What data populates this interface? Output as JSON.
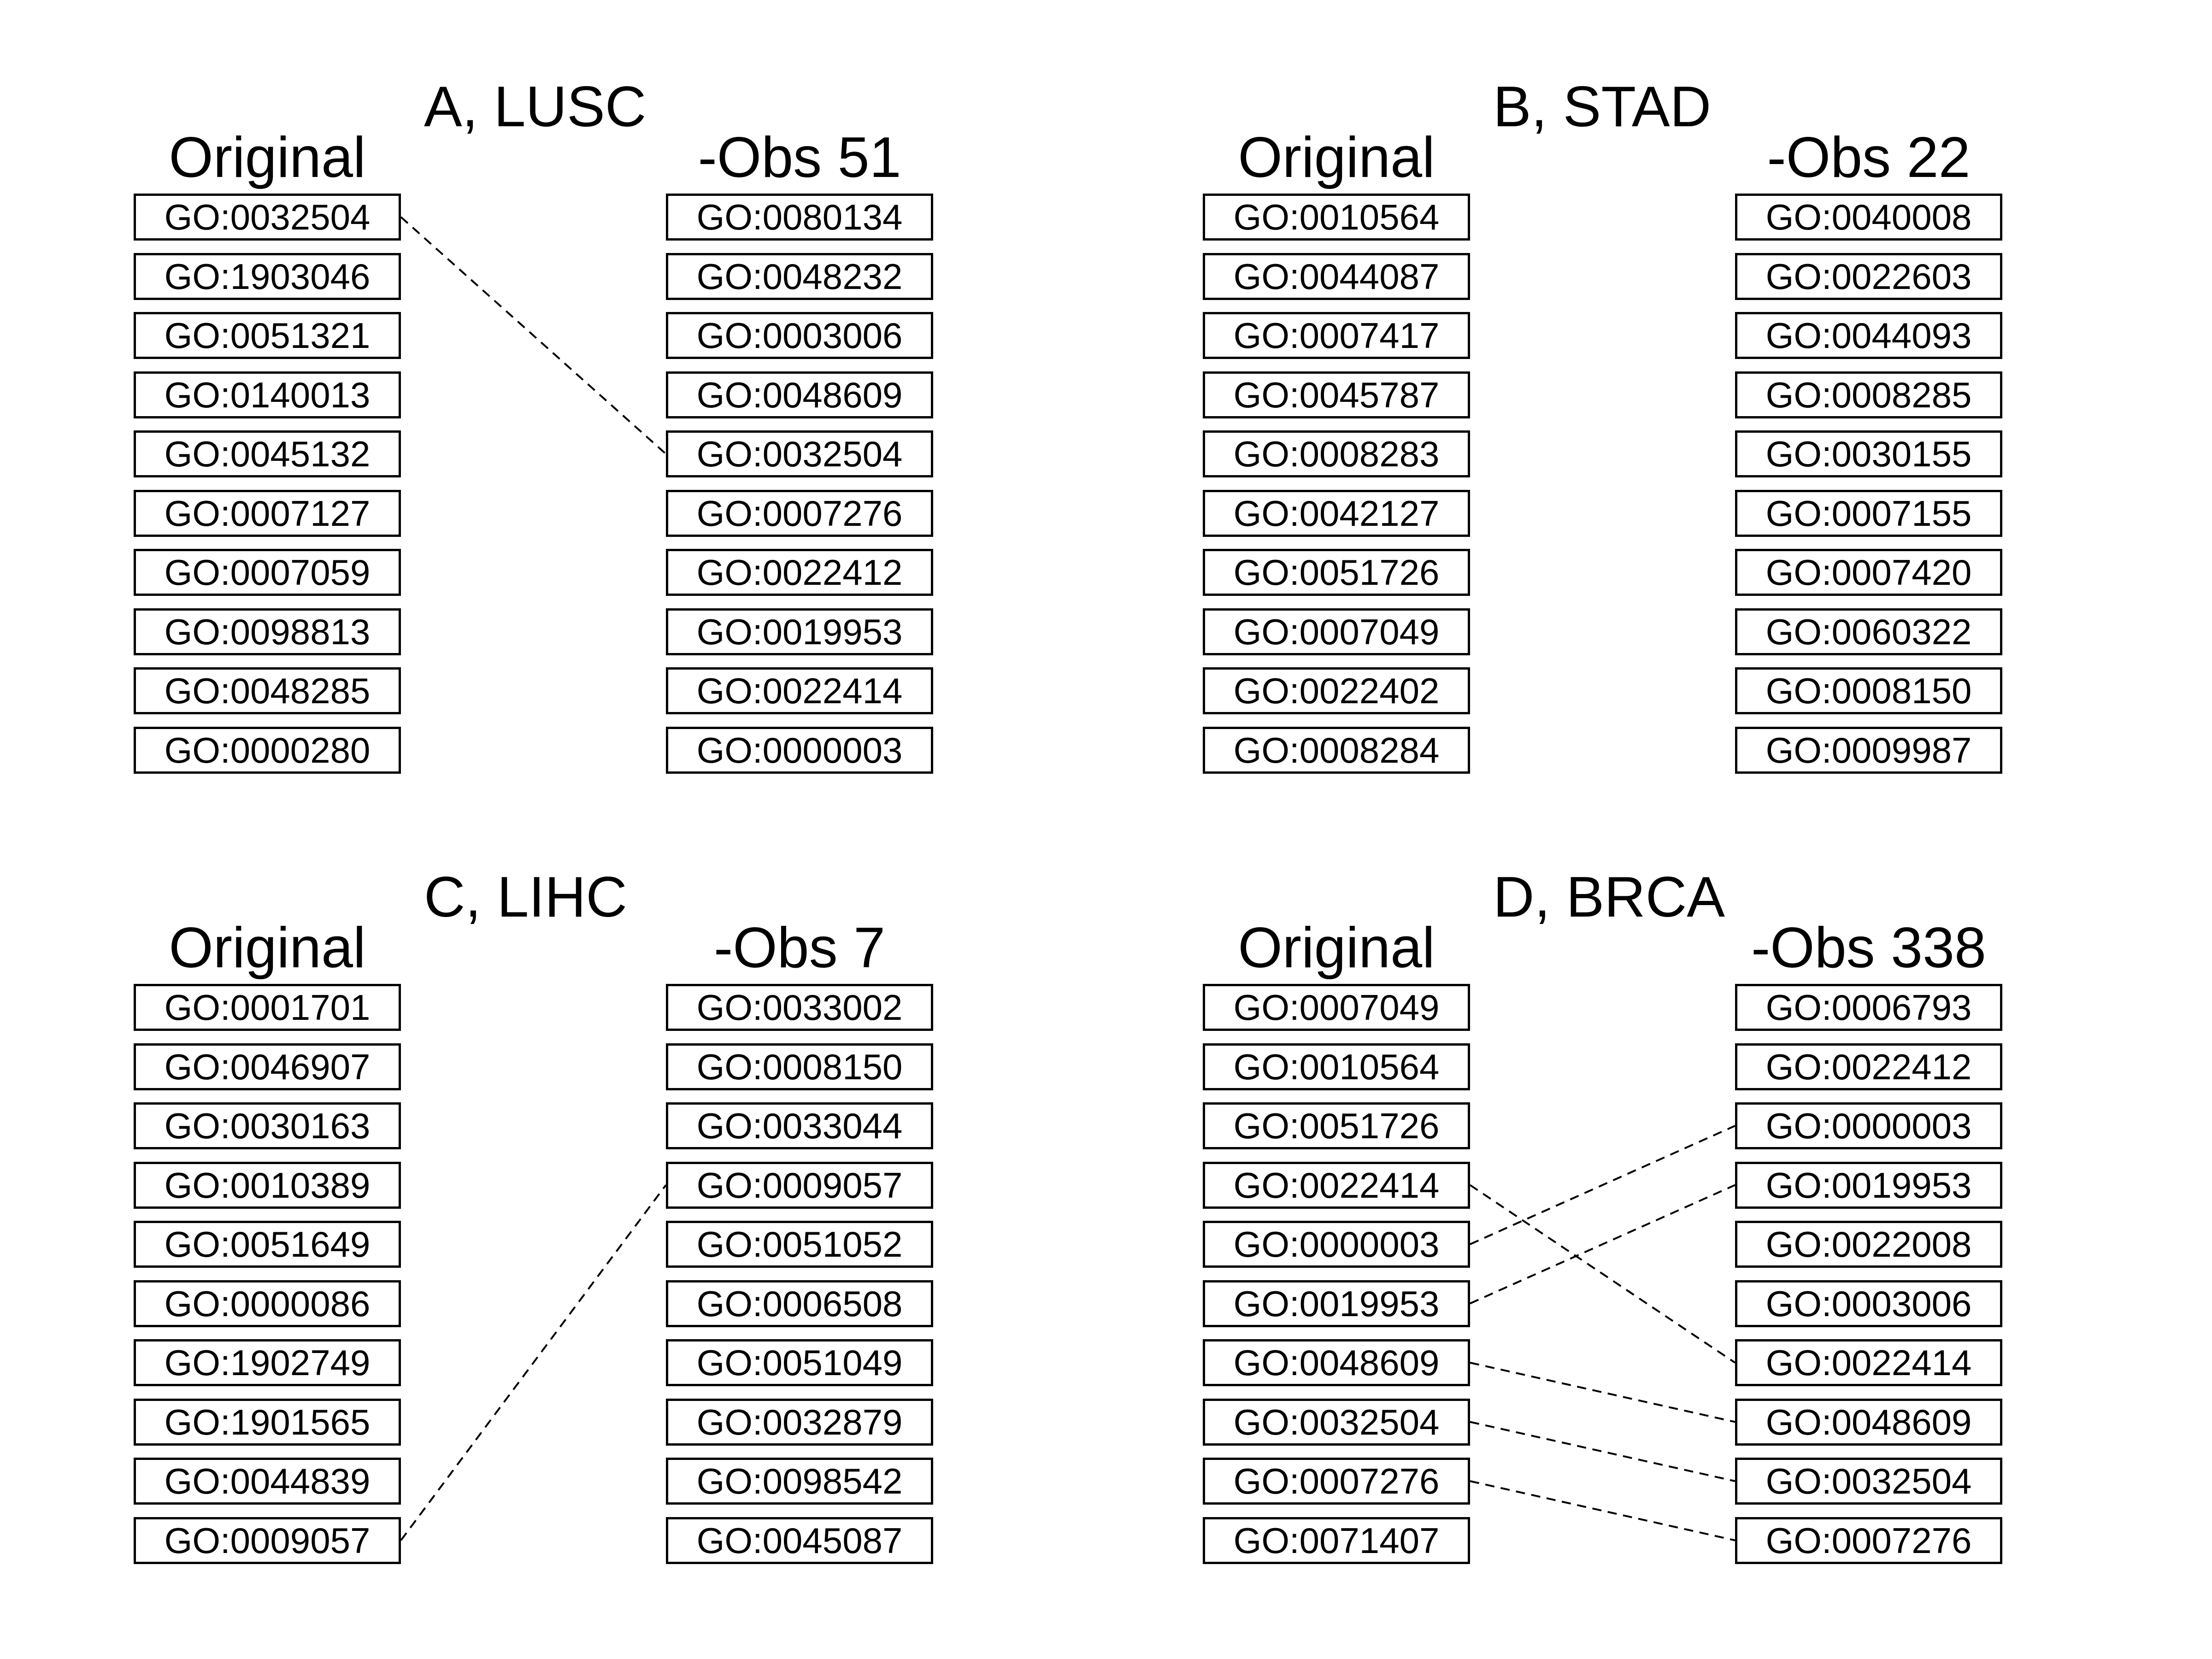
{
  "panels": [
    {
      "title": "A, LUSC",
      "left_header": "Original",
      "right_header": "-Obs 51",
      "left": [
        "GO:0032504",
        "GO:1903046",
        "GO:0051321",
        "GO:0140013",
        "GO:0045132",
        "GO:0007127",
        "GO:0007059",
        "GO:0098813",
        "GO:0048285",
        "GO:0000280"
      ],
      "right": [
        "GO:0080134",
        "GO:0048232",
        "GO:0003006",
        "GO:0048609",
        "GO:0032504",
        "GO:0007276",
        "GO:0022412",
        "GO:0019953",
        "GO:0022414",
        "GO:0000003"
      ],
      "links": [
        [
          0,
          4
        ]
      ]
    },
    {
      "title": "B, STAD",
      "left_header": "Original",
      "right_header": "-Obs 22",
      "left": [
        "GO:0010564",
        "GO:0044087",
        "GO:0007417",
        "GO:0045787",
        "GO:0008283",
        "GO:0042127",
        "GO:0051726",
        "GO:0007049",
        "GO:0022402",
        "GO:0008284"
      ],
      "right": [
        "GO:0040008",
        "GO:0022603",
        "GO:0044093",
        "GO:0008285",
        "GO:0030155",
        "GO:0007155",
        "GO:0007420",
        "GO:0060322",
        "GO:0008150",
        "GO:0009987"
      ],
      "links": []
    },
    {
      "title": "C, LIHC",
      "left_header": "Original",
      "right_header": "-Obs 7",
      "left": [
        "GO:0001701",
        "GO:0046907",
        "GO:0030163",
        "GO:0010389",
        "GO:0051649",
        "GO:0000086",
        "GO:1902749",
        "GO:1901565",
        "GO:0044839",
        "GO:0009057"
      ],
      "right": [
        "GO:0033002",
        "GO:0008150",
        "GO:0033044",
        "GO:0009057",
        "GO:0051052",
        "GO:0006508",
        "GO:0051049",
        "GO:0032879",
        "GO:0098542",
        "GO:0045087"
      ],
      "links": [
        [
          9,
          3
        ]
      ]
    },
    {
      "title": "D, BRCA",
      "left_header": "Original",
      "right_header": "-Obs 338",
      "left": [
        "GO:0007049",
        "GO:0010564",
        "GO:0051726",
        "GO:0022414",
        "GO:0000003",
        "GO:0019953",
        "GO:0048609",
        "GO:0032504",
        "GO:0007276",
        "GO:0071407"
      ],
      "right": [
        "GO:0006793",
        "GO:0022412",
        "GO:0000003",
        "GO:0019953",
        "GO:0022008",
        "GO:0003006",
        "GO:0022414",
        "GO:0048609",
        "GO:0032504",
        "GO:0007276"
      ],
      "links": [
        [
          3,
          6
        ],
        [
          4,
          2
        ],
        [
          5,
          3
        ],
        [
          6,
          7
        ],
        [
          7,
          8
        ],
        [
          8,
          9
        ]
      ]
    }
  ]
}
